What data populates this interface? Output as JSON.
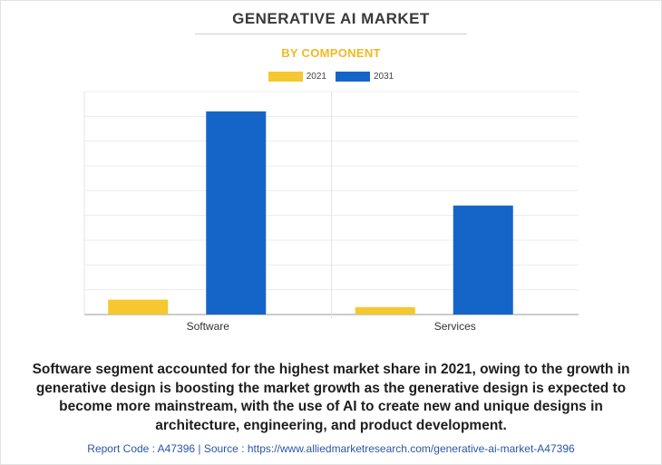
{
  "chart_data": {
    "type": "bar",
    "title": "GENERATIVE AI MARKET",
    "subtitle": "BY COMPONENT",
    "categories": [
      "Software",
      "Services"
    ],
    "series": [
      {
        "name": "2021",
        "color": "#f5c730",
        "values": [
          0.06,
          0.03
        ]
      },
      {
        "name": "2031",
        "color": "#1565c8",
        "values": [
          0.82,
          0.44
        ]
      }
    ],
    "ylim": [
      0,
      0.9
    ],
    "yticks": [
      0,
      0.1,
      0.2,
      0.3,
      0.4,
      0.5,
      0.6,
      0.7,
      0.8,
      0.9
    ],
    "grid": true,
    "legend": "top-center"
  },
  "caption": "Software segment accounted for the highest market share in 2021, owing to the growth in generative design is boosting the market growth as the generative design is expected to become more mainstream, with the use of AI to create new and unique designs in architecture, engineering, and product development.",
  "footer": "Report Code : A47396  |  Source : https://www.alliedmarketresearch.com/generative-ai-market-A47396"
}
